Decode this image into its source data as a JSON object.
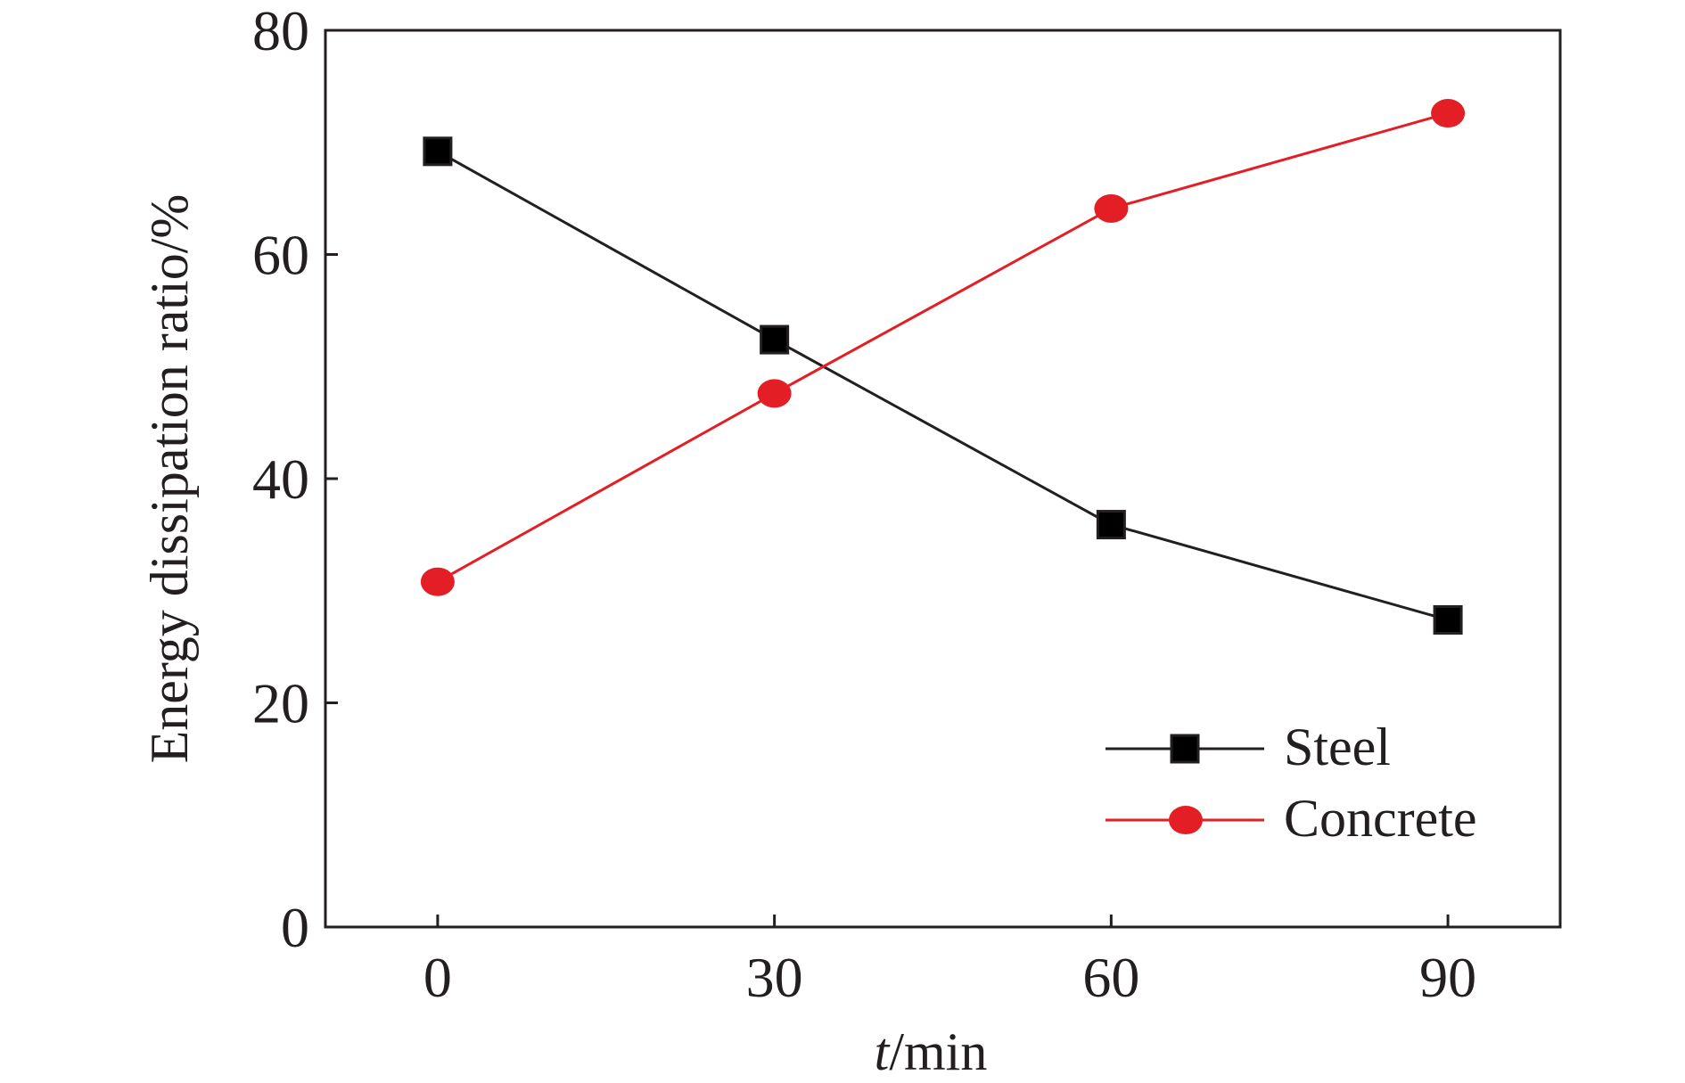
{
  "chart_data": {
    "type": "line",
    "title": "",
    "xlabel_italic": "t",
    "xlabel_rest": "/min",
    "ylabel": "Energy dissipation ratio/%",
    "x": [
      0,
      30,
      60,
      90
    ],
    "xlim": [
      -10,
      100
    ],
    "ylim": [
      0,
      80
    ],
    "xticks": [
      0,
      30,
      60,
      90
    ],
    "yticks": [
      0,
      20,
      40,
      60,
      80
    ],
    "grid": false,
    "legend_position": "bottom-right",
    "series": [
      {
        "name": "Steel",
        "values": [
          69.2,
          52.4,
          35.9,
          27.4
        ],
        "color": "#231f20",
        "marker": "square"
      },
      {
        "name": "Concrete",
        "values": [
          30.8,
          47.6,
          64.1,
          72.6
        ],
        "color": "#e31e24",
        "marker": "circle"
      }
    ]
  }
}
